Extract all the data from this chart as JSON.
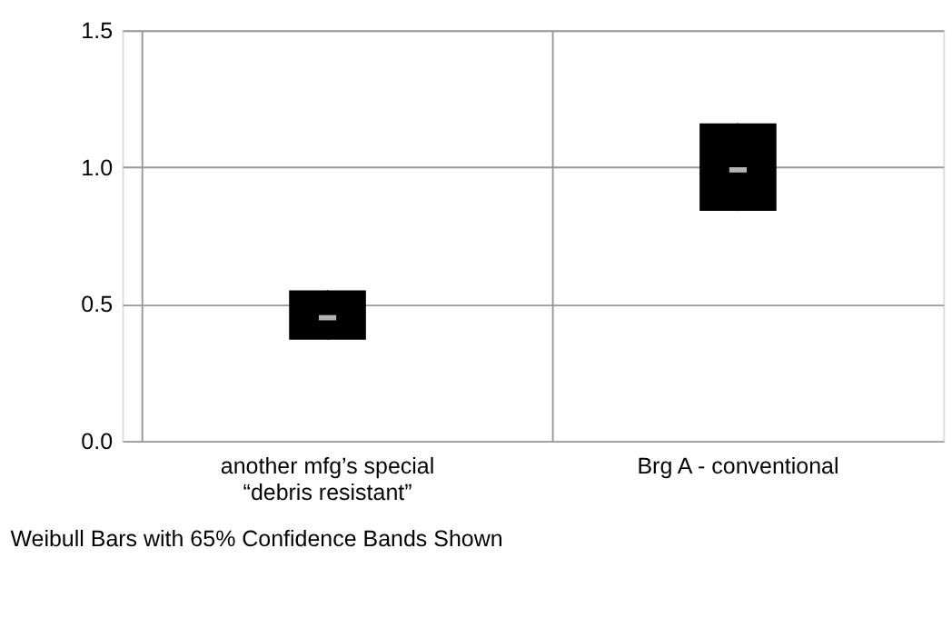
{
  "chart_data": {
    "type": "box",
    "categories": [
      "another mfg’s special\n“debris resistant”",
      "Brg A - conventional"
    ],
    "boxes": [
      {
        "low": 0.37,
        "q1": 0.37,
        "median": 0.45,
        "q3": 0.55,
        "high": 0.55
      },
      {
        "low": 0.84,
        "q1": 0.84,
        "median": 0.99,
        "q3": 1.16,
        "high": 1.16
      }
    ],
    "color": "#000000",
    "ylim": [
      0,
      1.5
    ],
    "yticks": [
      {
        "value": 0,
        "label": "0.0"
      },
      0.5,
      {
        "value": 1,
        "label": "1.0"
      },
      1.5
    ],
    "grid": true,
    "annotations": [
      "Weibull Bars with 65% Confidence Bands Shown"
    ]
  }
}
